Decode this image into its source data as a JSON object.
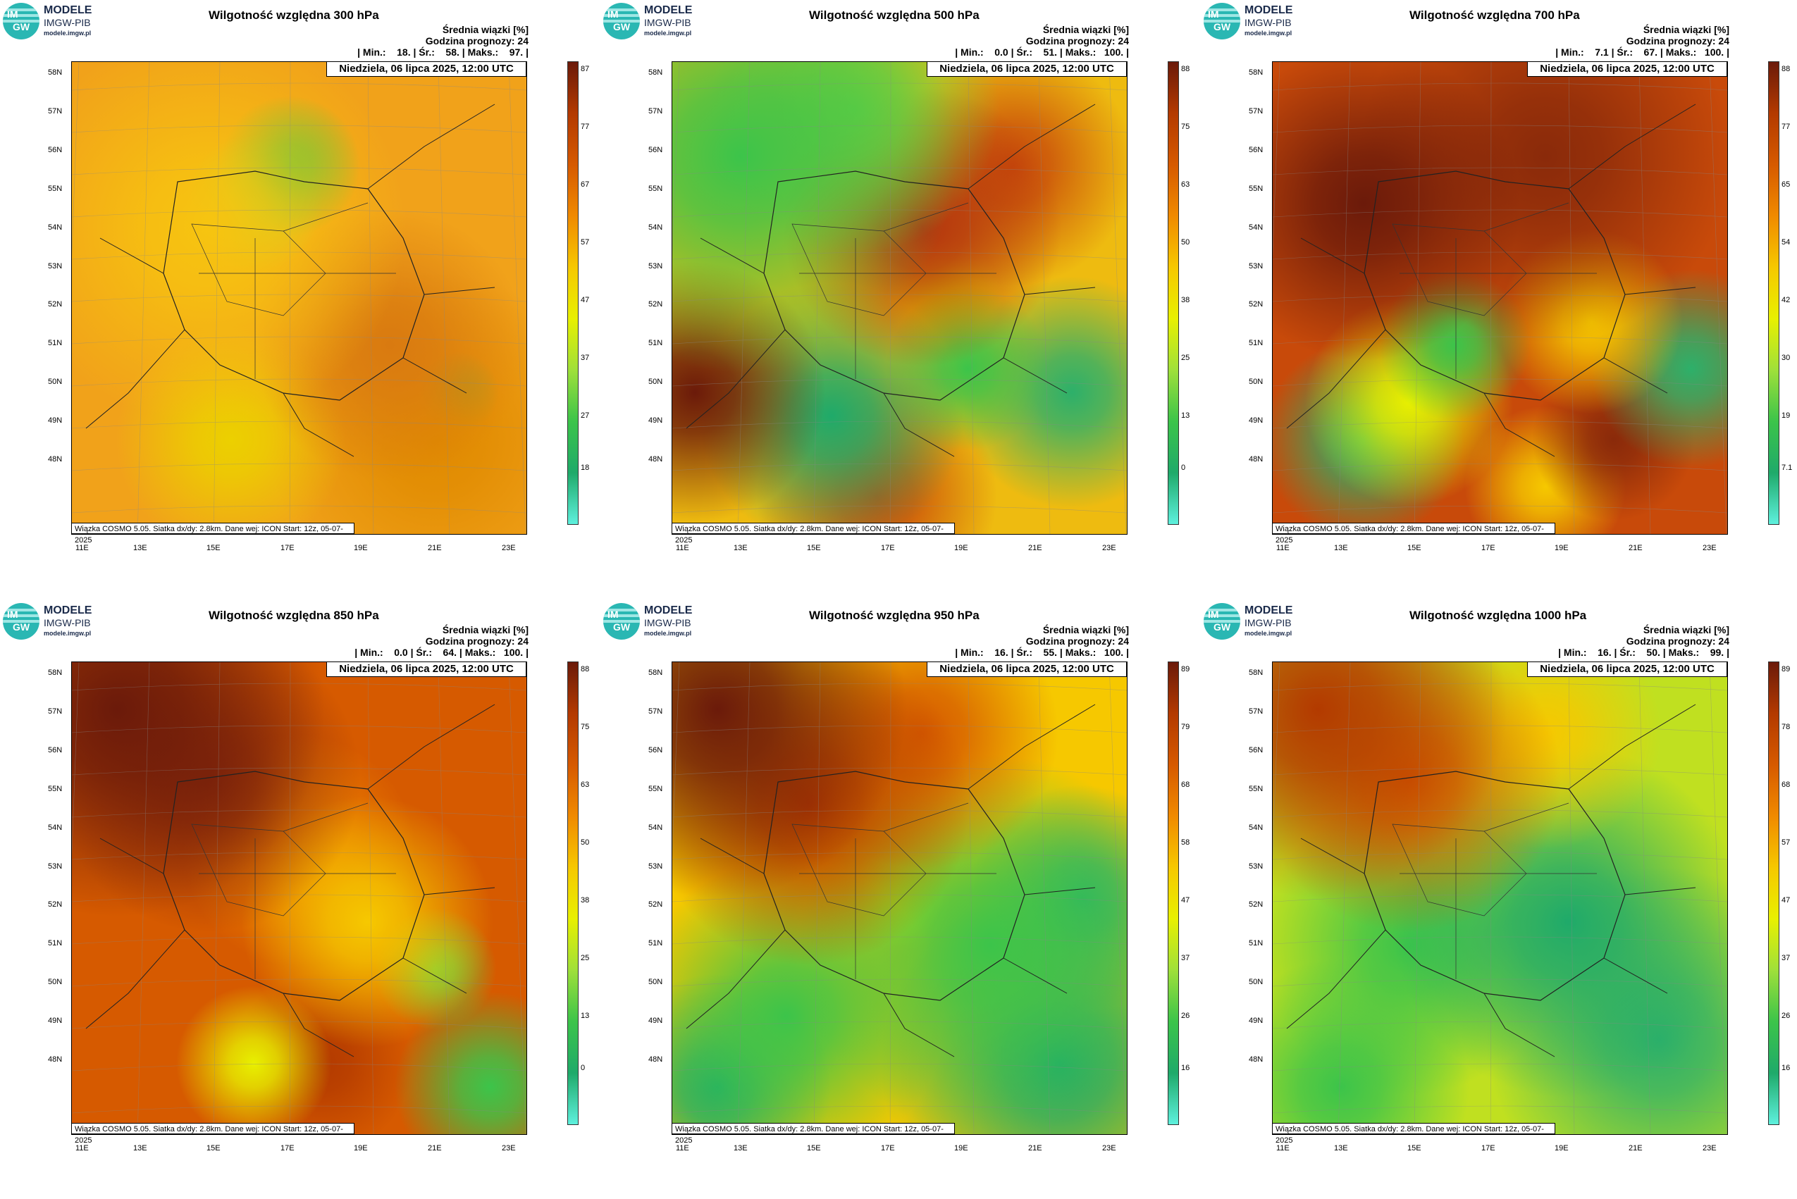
{
  "logo": {
    "line1": "MODELE",
    "line2": "IMGW-PIB",
    "line3": "modele.imgw.pl",
    "mark_top": "IM",
    "mark_bottom": "GW"
  },
  "common": {
    "info1": "Średnia wiązki [%]",
    "info2": "Godzina prognozy: 24",
    "date": "Niedziela, 06 lipca 2025, 12:00 UTC",
    "footer": "Wiązka COSMO 5.05. Siatka dx/dy: 2.8km. Dane wej: ICON Start: 12z, 05-07-2025",
    "lat_labels": [
      "58N",
      "57N",
      "56N",
      "55N",
      "54N",
      "53N",
      "52N",
      "51N",
      "50N",
      "49N",
      "48N"
    ],
    "lon_labels": [
      "11E",
      "13E",
      "15E",
      "17E",
      "19E",
      "21E",
      "23E"
    ]
  },
  "panels": [
    {
      "title": "Wilgotność względna 300 hPa",
      "stats": "| Min.:    18. | Śr.:    58. | Maks.:    97. |",
      "ticks": [
        "87",
        "77",
        "67",
        "57",
        "47",
        "37",
        "27",
        "18"
      ],
      "palette": "warm_orange"
    },
    {
      "title": "Wilgotność względna 500 hPa",
      "stats": "| Min.:    0.0 | Śr.:    51. | Maks.:   100. |",
      "ticks": [
        "88",
        "75",
        "63",
        "50",
        "38",
        "25",
        "13",
        "0"
      ],
      "palette": "mixed_green"
    },
    {
      "title": "Wilgotność względna 700 hPa",
      "stats": "| Min.:    7.1 | Śr.:    67. | Maks.:   100. |",
      "ticks": [
        "88",
        "77",
        "65",
        "54",
        "42",
        "30",
        "19",
        "7.1"
      ],
      "palette": "dark_red"
    },
    {
      "title": "Wilgotność względna 850 hPa",
      "stats": "| Min.:    0.0 | Śr.:    64. | Maks.:   100. |",
      "ticks": [
        "88",
        "75",
        "63",
        "50",
        "38",
        "25",
        "13",
        "0"
      ],
      "palette": "red_orange"
    },
    {
      "title": "Wilgotność względna 950 hPa",
      "stats": "| Min.:    16. | Śr.:    55. | Maks.:   100. |",
      "ticks": [
        "89",
        "79",
        "68",
        "58",
        "47",
        "37",
        "26",
        "16"
      ],
      "palette": "split_green"
    },
    {
      "title": "Wilgotność względna 1000 hPa",
      "stats": "| Min.:    16. | Śr.:    50. | Maks.:    99. |",
      "ticks": [
        "89",
        "78",
        "68",
        "57",
        "47",
        "37",
        "26",
        "16"
      ],
      "palette": "green_dominant"
    }
  ],
  "colors": {
    "colorbar_stops": [
      "#5ef0dd",
      "#1faa6a",
      "#3cc44a",
      "#9fe03a",
      "#e8f000",
      "#f6c800",
      "#f08a00",
      "#d65a00",
      "#b33a00",
      "#6b1a0a"
    ]
  }
}
